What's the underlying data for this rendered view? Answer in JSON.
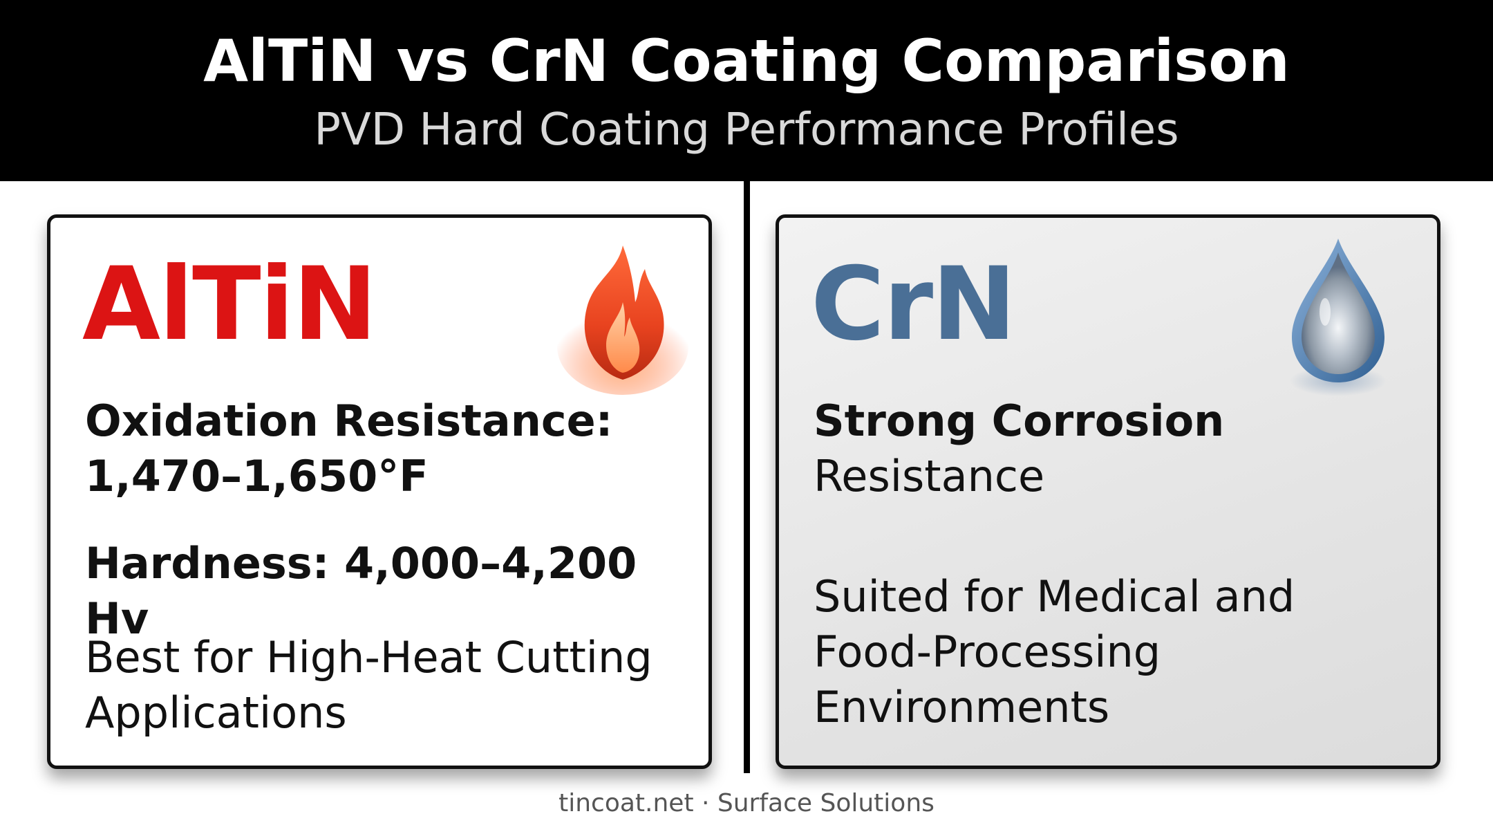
{
  "header": {
    "title": "AlTiN vs CrN Coating Comparison",
    "subtitle": "PVD Hard Coating Performance Profiles"
  },
  "cards": [
    {
      "name": "AlTiN",
      "color": "#dc1414",
      "icon": "fire-icon",
      "oxidation_label": "Oxidation Resistance:",
      "oxidation_value": "1,470–1,650°F",
      "hardness": "Hardness: 4,000–4,200 Hv",
      "use_line1": "Best for High-Heat Cutting",
      "use_line2": "Applications"
    },
    {
      "name": "CrN",
      "color": "#4a6f96",
      "icon": "water-drop-icon",
      "corrosion_bold": "Strong Corrosion",
      "corrosion_rest": "Resistance",
      "use_line1": "Suited for Medical and",
      "use_line2": "Food-Processing",
      "use_line3": "Environments"
    }
  ],
  "footer": {
    "text": "tincoat.net · Surface Solutions"
  }
}
